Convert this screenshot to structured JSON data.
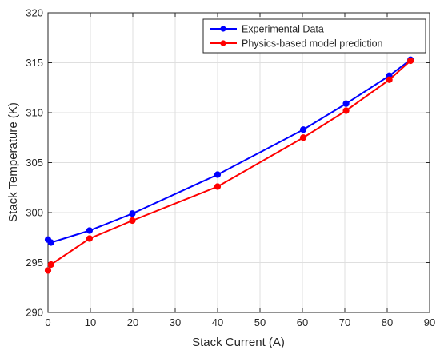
{
  "chart_data": {
    "type": "line",
    "title": "",
    "xlabel": "Stack Current (A)",
    "ylabel": "Stack Temperature (K)",
    "xlim": [
      0,
      90
    ],
    "ylim": [
      290,
      320
    ],
    "xticks": [
      0,
      10,
      20,
      30,
      40,
      50,
      60,
      70,
      80,
      90
    ],
    "yticks": [
      290,
      295,
      300,
      305,
      310,
      315,
      320
    ],
    "grid": true,
    "legend_position": "top-right",
    "series": [
      {
        "name": "Experimental Data",
        "color": "#0000ff",
        "marker": "circle",
        "points": [
          [
            0,
            297.3
          ],
          [
            0.7,
            297.0
          ],
          [
            9.8,
            298.2
          ],
          [
            19.9,
            299.9
          ],
          [
            40.0,
            303.8
          ],
          [
            60.2,
            308.3
          ],
          [
            70.3,
            310.9
          ],
          [
            80.5,
            313.7
          ],
          [
            85.5,
            315.3
          ]
        ]
      },
      {
        "name": "Physics-based model prediction",
        "color": "#ff0000",
        "marker": "circle",
        "points": [
          [
            0,
            294.2
          ],
          [
            0.7,
            294.8
          ],
          [
            9.8,
            297.4
          ],
          [
            19.9,
            299.2
          ],
          [
            40.0,
            302.6
          ],
          [
            60.2,
            307.5
          ],
          [
            70.3,
            310.2
          ],
          [
            80.5,
            313.3
          ],
          [
            85.5,
            315.2
          ]
        ]
      }
    ]
  }
}
